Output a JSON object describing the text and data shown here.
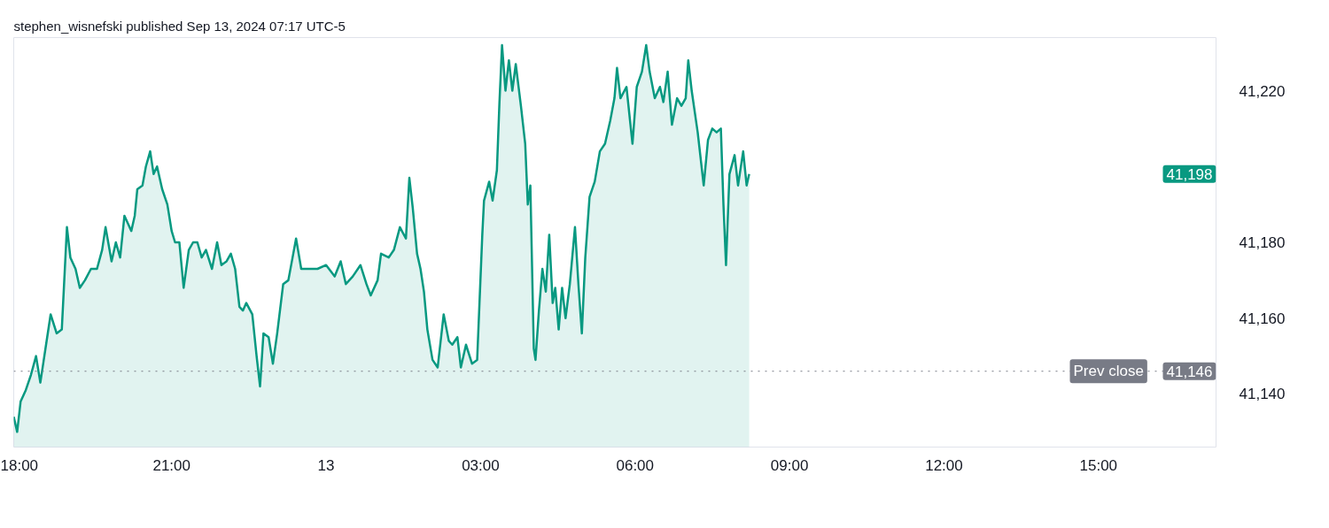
{
  "chart_data": {
    "type": "area",
    "title": "stephen_wisnefski published Sep 13, 2024 07:17 UTC-5",
    "xlim": [
      "2024-09-12T17:56",
      "2024-09-13T17:17"
    ],
    "ylim": [
      41126,
      41234
    ],
    "xticks": [
      {
        "value": "2024-09-12T18:00",
        "label": "18:00"
      },
      {
        "value": "2024-09-12T21:00",
        "label": "21:00"
      },
      {
        "value": "2024-09-13T00:00",
        "label": "13"
      },
      {
        "value": "2024-09-13T03:00",
        "label": "03:00"
      },
      {
        "value": "2024-09-13T06:00",
        "label": "06:00"
      },
      {
        "value": "2024-09-13T09:00",
        "label": "09:00"
      },
      {
        "value": "2024-09-13T12:00",
        "label": "12:00"
      },
      {
        "value": "2024-09-13T15:00",
        "label": "15:00"
      }
    ],
    "yticks": [
      {
        "value": 41140,
        "label": "41,140"
      },
      {
        "value": 41160,
        "label": "41,160"
      },
      {
        "value": 41180,
        "label": "41,180"
      },
      {
        "value": 41220,
        "label": "41,220"
      }
    ],
    "ref_lines": [
      {
        "axis": "y",
        "value": 41146,
        "label": "Prev close",
        "color": "#787b86",
        "line_style": "dotted"
      }
    ],
    "annotations": [
      {
        "text": "41,146",
        "y": 41146
      },
      "41,198"
    ],
    "series": [
      {
        "color": "#089981",
        "x": [
          "2024-09-12T17:56",
          "2024-09-12T18:00",
          "2024-09-12T18:04",
          "2024-09-12T18:10",
          "2024-09-12T18:16",
          "2024-09-12T18:22",
          "2024-09-12T18:27",
          "2024-09-12T18:33",
          "2024-09-12T18:39",
          "2024-09-12T18:46",
          "2024-09-12T18:52",
          "2024-09-12T18:58",
          "2024-09-12T19:02",
          "2024-09-12T19:08",
          "2024-09-12T19:13",
          "2024-09-12T19:19",
          "2024-09-12T19:26",
          "2024-09-12T19:33",
          "2024-09-12T19:39",
          "2024-09-12T19:43",
          "2024-09-12T19:50",
          "2024-09-12T19:55",
          "2024-09-12T20:00",
          "2024-09-12T20:05",
          "2024-09-12T20:13",
          "2024-09-12T20:17",
          "2024-09-12T20:20",
          "2024-09-12T20:26",
          "2024-09-12T20:30",
          "2024-09-12T20:35",
          "2024-09-12T20:39",
          "2024-09-12T20:43",
          "2024-09-12T20:49",
          "2024-09-12T20:55",
          "2024-09-12T21:00",
          "2024-09-12T21:04",
          "2024-09-12T21:09",
          "2024-09-12T21:14",
          "2024-09-12T21:20",
          "2024-09-12T21:25",
          "2024-09-12T21:30",
          "2024-09-12T21:35",
          "2024-09-12T21:40",
          "2024-09-12T21:47",
          "2024-09-12T21:53",
          "2024-09-12T21:58",
          "2024-09-12T22:04",
          "2024-09-12T22:09",
          "2024-09-12T22:14",
          "2024-09-12T22:19",
          "2024-09-12T22:23",
          "2024-09-12T22:27",
          "2024-09-12T22:34",
          "2024-09-12T22:39",
          "2024-09-12T22:43",
          "2024-09-12T22:47",
          "2024-09-12T22:53",
          "2024-09-12T22:58",
          "2024-09-12T23:03",
          "2024-09-12T23:10",
          "2024-09-12T23:16",
          "2024-09-12T23:25",
          "2024-09-12T23:31",
          "2024-09-12T23:39",
          "2024-09-12T23:50",
          "2024-09-13T00:00",
          "2024-09-13T00:10",
          "2024-09-13T00:17",
          "2024-09-13T00:23",
          "2024-09-13T00:31",
          "2024-09-13T00:40",
          "2024-09-13T00:47",
          "2024-09-13T00:52",
          "2024-09-13T01:00",
          "2024-09-13T01:04",
          "2024-09-13T01:13",
          "2024-09-13T01:19",
          "2024-09-13T01:26",
          "2024-09-13T01:33",
          "2024-09-13T01:37",
          "2024-09-13T01:41",
          "2024-09-13T01:46",
          "2024-09-13T01:50",
          "2024-09-13T01:54",
          "2024-09-13T01:58",
          "2024-09-13T02:04",
          "2024-09-13T02:10",
          "2024-09-13T02:17",
          "2024-09-13T02:23",
          "2024-09-13T02:27",
          "2024-09-13T02:33",
          "2024-09-13T02:37",
          "2024-09-13T02:43",
          "2024-09-13T02:50",
          "2024-09-13T02:56",
          "2024-09-13T03:02",
          "2024-09-13T03:04",
          "2024-09-13T03:10",
          "2024-09-13T03:14",
          "2024-09-13T03:19",
          "2024-09-13T03:22",
          "2024-09-13T03:25",
          "2024-09-13T03:29",
          "2024-09-13T03:33",
          "2024-09-13T03:37",
          "2024-09-13T03:41",
          "2024-09-13T03:47",
          "2024-09-13T03:52",
          "2024-09-13T03:55",
          "2024-09-13T03:58",
          "2024-09-13T04:02",
          "2024-09-13T04:04",
          "2024-09-13T04:08",
          "2024-09-13T04:12",
          "2024-09-13T04:16",
          "2024-09-13T04:20",
          "2024-09-13T04:24",
          "2024-09-13T04:27",
          "2024-09-13T04:31",
          "2024-09-13T04:35",
          "2024-09-13T04:39",
          "2024-09-13T04:44",
          "2024-09-13T04:50",
          "2024-09-13T04:54",
          "2024-09-13T04:58",
          "2024-09-13T05:02",
          "2024-09-13T05:07",
          "2024-09-13T05:13",
          "2024-09-13T05:19",
          "2024-09-13T05:25",
          "2024-09-13T05:31",
          "2024-09-13T05:36",
          "2024-09-13T05:39",
          "2024-09-13T05:43",
          "2024-09-13T05:50",
          "2024-09-13T05:57",
          "2024-09-13T06:02",
          "2024-09-13T06:08",
          "2024-09-13T06:13",
          "2024-09-13T06:17",
          "2024-09-13T06:23",
          "2024-09-13T06:29",
          "2024-09-13T06:33",
          "2024-09-13T06:38",
          "2024-09-13T06:43",
          "2024-09-13T06:49",
          "2024-09-13T06:54",
          "2024-09-13T06:59",
          "2024-09-13T07:02",
          "2024-09-13T07:06",
          "2024-09-13T07:13",
          "2024-09-13T07:20",
          "2024-09-13T07:25",
          "2024-09-13T07:30",
          "2024-09-13T07:35",
          "2024-09-13T07:40",
          "2024-09-13T07:43",
          "2024-09-13T07:46",
          "2024-09-13T07:50",
          "2024-09-13T07:56",
          "2024-09-13T08:00",
          "2024-09-13T08:06",
          "2024-09-13T08:10",
          "2024-09-13T08:13"
        ],
        "values": [
          41134,
          41130,
          41138,
          41141,
          41145,
          41150,
          41143,
          41152,
          41161,
          41156,
          41157,
          41184,
          41176,
          41173,
          41168,
          41170,
          41173,
          41173,
          41178,
          41184,
          41175,
          41180,
          41176,
          41187,
          41183,
          41187,
          41194,
          41195,
          41200,
          41204,
          41198,
          41200,
          41194,
          41190,
          41183,
          41180,
          41180,
          41168,
          41178,
          41180,
          41180,
          41176,
          41178,
          41173,
          41180,
          41174,
          41175,
          41177,
          41173,
          41163,
          41162,
          41164,
          41161,
          41150,
          41142,
          41156,
          41155,
          41148,
          41156,
          41169,
          41170,
          41181,
          41173,
          41173,
          41173,
          41174,
          41171,
          41175,
          41169,
          41171,
          41174,
          41169,
          41166,
          41170,
          41177,
          41176,
          41178,
          41184,
          41181,
          41197,
          41189,
          41177,
          41173,
          41167,
          41157,
          41149,
          41147,
          41161,
          41154,
          41153,
          41155,
          41147,
          41153,
          41148,
          41149,
          41182,
          41191,
          41196,
          41191,
          41199,
          41217,
          41232,
          41220,
          41228,
          41220,
          41227,
          41216,
          41206,
          41190,
          41195,
          41152,
          41149,
          41162,
          41173,
          41167,
          41182,
          41164,
          41168,
          41157,
          41168,
          41160,
          41169,
          41184,
          41169,
          41156,
          41176,
          41192,
          41196,
          41204,
          41206,
          41212,
          41218,
          41226,
          41218,
          41221,
          41206,
          41221,
          41225,
          41232,
          41225,
          41218,
          41221,
          41217,
          41225,
          41211,
          41218,
          41216,
          41218,
          41228,
          41220,
          41209,
          41195,
          41207,
          41210,
          41209,
          41210,
          41190,
          41174,
          41198,
          41203,
          41195,
          41204,
          41195,
          41198
        ]
      }
    ]
  }
}
